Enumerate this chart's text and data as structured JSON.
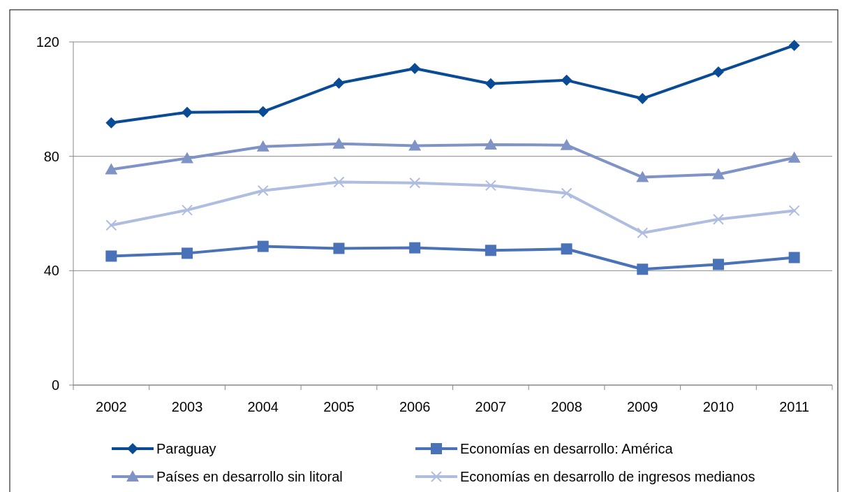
{
  "chart_data": {
    "type": "line",
    "categories": [
      "2002",
      "2003",
      "2004",
      "2005",
      "2006",
      "2007",
      "2008",
      "2009",
      "2010",
      "2011"
    ],
    "series": [
      {
        "name": "Paraguay",
        "color": "#0a4b96",
        "marker": "diamond",
        "values": [
          91.7,
          95.4,
          95.6,
          105.6,
          110.7,
          105.4,
          106.6,
          100.2,
          109.5,
          118.8
        ]
      },
      {
        "name": "Economías en desarrollo: América",
        "color": "#4a72b8",
        "marker": "square",
        "values": [
          45.1,
          46.1,
          48.5,
          47.8,
          48,
          47.1,
          47.6,
          40.5,
          42.2,
          44.6
        ]
      },
      {
        "name": "Países en desarrollo sin litoral",
        "color": "#7f93c6",
        "marker": "triangle",
        "values": [
          75.4,
          79.3,
          83.4,
          84.4,
          83.7,
          84.1,
          83.9,
          72.7,
          73.7,
          79.5
        ]
      },
      {
        "name": "Economías en desarrollo de ingresos medianos",
        "color": "#aebde0",
        "marker": "cross",
        "values": [
          55.9,
          61.2,
          68,
          71,
          70.7,
          69.8,
          67.1,
          53.2,
          58,
          61
        ]
      }
    ],
    "ylim": [
      0,
      120
    ],
    "yticks": [
      0,
      40,
      80,
      120
    ],
    "grid": "y",
    "legend": "bottom"
  }
}
